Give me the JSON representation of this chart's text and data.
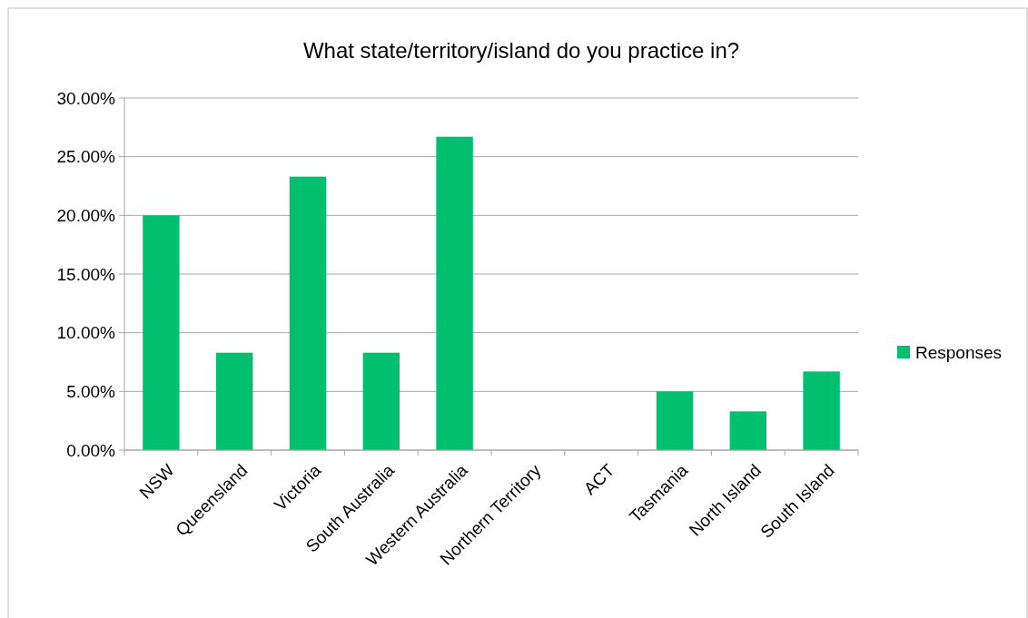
{
  "chart_data": {
    "type": "bar",
    "title": "What state/territory/island do you practice in?",
    "categories": [
      "NSW",
      "Queensland",
      "Victoria",
      "South Australia",
      "Western Australia",
      "Northern Territory",
      "ACT",
      "Tasmania",
      "North Island",
      "South Island"
    ],
    "series": [
      {
        "name": "Responses",
        "color": "#00c06f",
        "values": [
          20,
          8.3,
          23.3,
          8.3,
          26.7,
          0,
          0,
          5,
          3.3,
          6.7
        ]
      }
    ],
    "ylim": [
      0,
      30
    ],
    "yticks": [
      {
        "value": 0,
        "label": "0.00%"
      },
      {
        "value": 5,
        "label": "5.00%"
      },
      {
        "value": 10,
        "label": "10.00%"
      },
      {
        "value": 15,
        "label": "15.00%"
      },
      {
        "value": 20,
        "label": "20.00%"
      },
      {
        "value": 25,
        "label": "25.00%"
      },
      {
        "value": 30,
        "label": "30.00%"
      }
    ],
    "grid": "y",
    "legend": "right"
  }
}
